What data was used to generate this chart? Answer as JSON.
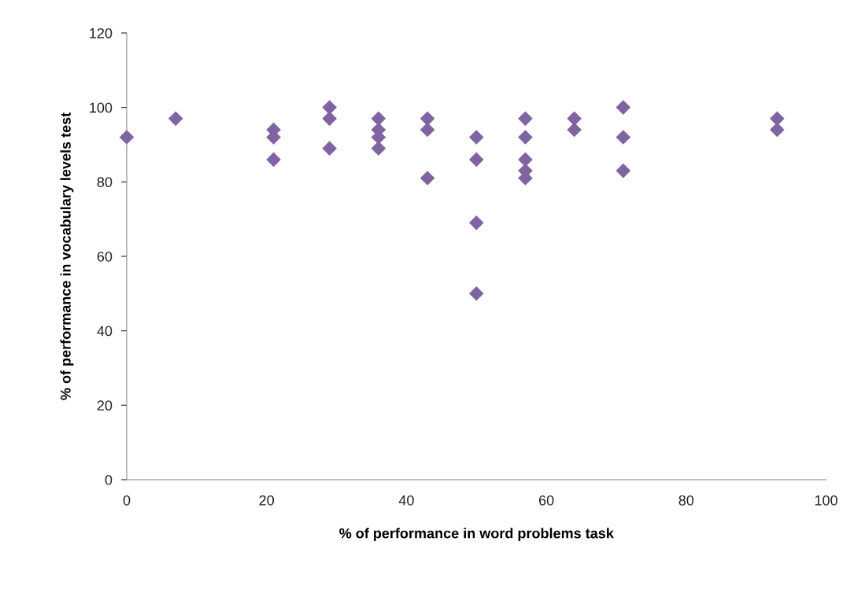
{
  "chart_data": {
    "type": "scatter",
    "xlabel": "% of performance in word problems task",
    "ylabel": "% of performance in vocabulary levels test",
    "x": [
      0,
      7,
      21,
      21,
      21,
      29,
      29,
      29,
      36,
      36,
      36,
      36,
      43,
      43,
      43,
      50,
      50,
      50,
      50,
      57,
      57,
      57,
      57,
      57,
      64,
      64,
      71,
      71,
      71,
      93,
      93
    ],
    "values": [
      92,
      97,
      94,
      92,
      86,
      100,
      97,
      89,
      97,
      94,
      92,
      89,
      97,
      94,
      81,
      92,
      86,
      69,
      50,
      97,
      92,
      86,
      83,
      81,
      97,
      94,
      100,
      92,
      83,
      97,
      94
    ],
    "color": "#8064a2",
    "marker": "diamond",
    "xlim": [
      0,
      100
    ],
    "xticks": [
      0,
      20,
      40,
      60,
      80,
      100
    ],
    "ylim": [
      0,
      120
    ],
    "yticks": [
      0,
      20,
      40,
      60,
      80,
      100,
      120
    ],
    "grid": false,
    "legend": false
  }
}
